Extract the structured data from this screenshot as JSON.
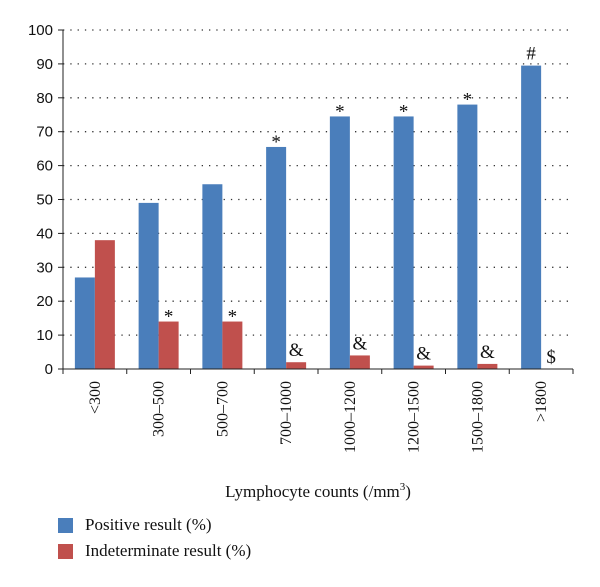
{
  "chart_data": {
    "type": "bar",
    "categories": [
      "<300",
      "300–500",
      "500–700",
      "700–1000",
      "1000–1200",
      "1200–1500",
      "1500–1800",
      ">1800"
    ],
    "series": [
      {
        "name": "Positive result (%)",
        "color": "#4a7ebb",
        "values": [
          27,
          49,
          54.5,
          65.5,
          74.5,
          74.5,
          78,
          89.5
        ],
        "markers": [
          "",
          "",
          "",
          "*",
          "*",
          "*",
          "*",
          "#"
        ]
      },
      {
        "name": "Indeterminate result (%)",
        "color": "#c0504d",
        "values": [
          38,
          14,
          14,
          2,
          4,
          1,
          1.5,
          0
        ],
        "markers": [
          "",
          "*",
          "*",
          "&",
          "&",
          "&",
          "&",
          "$"
        ]
      }
    ],
    "xlabel": "Lymphocyte counts (/mm",
    "xlabel_superscript": "3",
    "xlabel_suffix": ")",
    "ylabel": "",
    "ylim": [
      0,
      100
    ],
    "yticks": [
      "0",
      "10",
      "20",
      "30",
      "40",
      "50",
      "60",
      "70",
      "80",
      "90",
      "100"
    ],
    "grid": "dotted horizontal",
    "legend_position": "bottom-left"
  }
}
